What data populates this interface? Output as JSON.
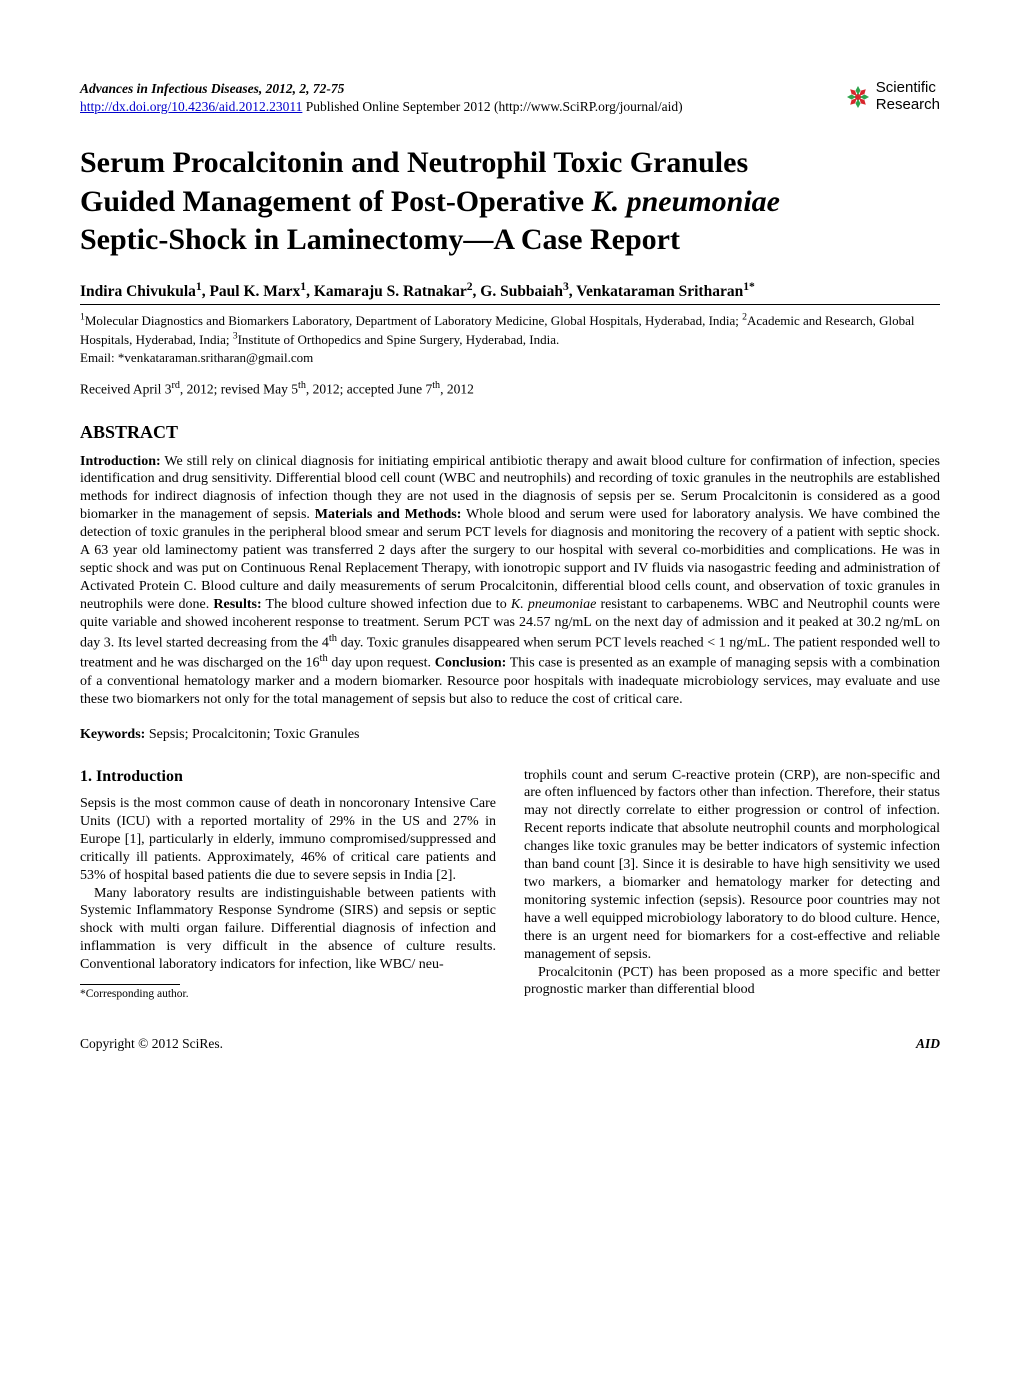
{
  "header": {
    "journal_citation": "Advances in Infectious Diseases, 2012, 2, 72-75",
    "doi_url": "http://dx.doi.org/10.4236/aid.2012.23011",
    "pub_line": " Published Online September 2012 (http://www.SciRP.org/journal/aid)",
    "logo_top": "Scientific",
    "logo_bottom": "Research",
    "logo_colors": {
      "red": "#d7262c",
      "green": "#2ea24a"
    }
  },
  "title_lines": [
    "Serum Procalcitonin and Neutrophil Toxic Granules",
    "Guided Management of Post-Operative ",
    "Septic-Shock in Laminectomy—A Case Report"
  ],
  "title_italic_species": "K. pneumoniae",
  "authors_html": "Indira Chivukula<sup>1</sup>, Paul K. Marx<sup>1</sup>, Kamaraju S. Ratnakar<sup>2</sup>, G. Subbaiah<sup>3</sup>, Venkataraman Sritharan<sup>1*</sup>",
  "affiliations": "<sup>1</sup>Molecular Diagnostics and Biomarkers Laboratory, Department of Laboratory Medicine, Global Hospitals, Hyderabad, India; <sup>2</sup>Academic and Research, Global Hospitals, Hyderabad, India; <sup>3</sup>Institute of Orthopedics and Spine Surgery, Hyderabad, India.",
  "email_label": "Email: ",
  "email": "*venkataraman.sritharan@gmail.com",
  "dates": "Received April 3<sup>rd</sup>, 2012; revised May 5<sup>th</sup>, 2012; accepted June 7<sup>th</sup>, 2012",
  "abstract_heading": "ABSTRACT",
  "abstract_body": "<b>Introduction:</b> We still rely on clinical diagnosis for initiating empirical antibiotic therapy and await blood culture for confirmation of infection, species identification and drug sensitivity. Differential blood cell count (WBC and neutrophils) and recording of toxic granules in the neutrophils are established methods for indirect diagnosis of infection though they are not used in the diagnosis of sepsis per se. Serum Procalcitonin is considered as a good biomarker in the management of sepsis. <b>Materials and Methods:</b> Whole blood and serum were used for laboratory analysis. We have combined the detection of toxic granules in the peripheral blood smear and serum PCT levels for diagnosis and monitoring the recovery of a patient with septic shock. A 63 year old laminectomy patient was transferred 2 days after the surgery to our hospital with several co-morbidities and complications. He was in septic shock and was put on Continuous Renal Replacement Therapy, with ionotropic support and IV fluids via nasogastric feeding and administration of Activated Protein C. Blood culture and daily measurements of serum Procalcitonin, differential blood cells count, and observation of toxic granules in neutrophils were done. <b>Results:</b> The blood culture showed infection due to <i>K. pneumoniae</i> resistant to carbapenems. WBC and Neutrophil counts were quite variable and showed incoherent response to treatment. Serum PCT was 24.57 ng/mL on the next day of admission and it peaked at 30.2 ng/mL on day 3. Its level started decreasing from the 4<sup>th</sup> day. Toxic granules disappeared when serum PCT levels reached &lt; 1 ng/mL. The patient responded well to treatment and he was discharged on the 16<sup>th</sup> day upon request. <b>Conclusion:</b> This case is presented as an example of managing sepsis with a combination of a conventional hematology marker and a modern biomarker. Resource poor hospitals with inadequate microbiology services, may evaluate and use these two biomarkers not only for the total management of sepsis but also to reduce the cost of critical care.",
  "keywords_label": "Keywords:",
  "keywords_text": " Sepsis; Procalcitonin; Toxic Granules",
  "section": {
    "heading": "1. Introduction",
    "p1": "Sepsis is the most common cause of death in noncoronary Intensive Care Units (ICU) with a reported mortality of 29% in the US and 27% in Europe [1], particularly in elderly, immuno compromised/suppressed and critically ill patients. Approximately, 46% of critical care patients and 53% of hospital based patients die due to severe sepsis in India [2].",
    "p2": "Many laboratory results are indistinguishable between patients with Systemic Inflammatory Response Syndrome (SIRS) and sepsis or septic shock with multi organ failure. Differential diagnosis of infection and inflammation is very difficult in the absence of culture results. Conventional laboratory indicators for infection, like WBC/ neu-",
    "p3": "trophils count and serum C-reactive protein (CRP), are non-specific and are often influenced by factors other than infection. Therefore, their status may not directly correlate to either progression or control of infection. Recent reports indicate that absolute neutrophil counts and morphological changes like toxic granules may be better indicators of systemic infection than band count [3]. Since it is desirable to have high sensitivity we used two markers, a biomarker and hematology marker for detecting and monitoring systemic infection (sepsis). Resource poor countries may not have a well equipped microbiology laboratory to do blood culture. Hence, there is an urgent need for biomarkers for a cost-effective and reliable management of sepsis.",
    "p4": "Procalcitonin (PCT) has been proposed as a more specific and better prognostic marker than differential blood"
  },
  "footnote": "*Corresponding author.",
  "footer": {
    "left": "Copyright © 2012 SciRes.",
    "right": "AID"
  }
}
